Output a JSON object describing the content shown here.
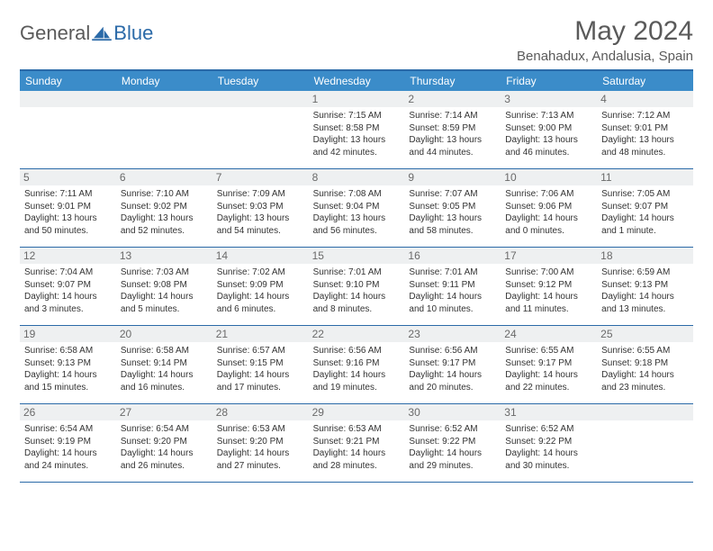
{
  "logo": {
    "text1": "General",
    "text2": "Blue"
  },
  "title": {
    "month": "May 2024",
    "location": "Benahadux, Andalusia, Spain"
  },
  "colors": {
    "header_bg": "#3b8cc9",
    "border": "#2b6aa8",
    "daynum_bg": "#eef0f1",
    "text_gray": "#5a5a5a",
    "text_dark": "#333333",
    "logo_blue": "#2b6aa8"
  },
  "weekdays": [
    "Sunday",
    "Monday",
    "Tuesday",
    "Wednesday",
    "Thursday",
    "Friday",
    "Saturday"
  ],
  "weeks": [
    [
      {
        "n": "",
        "empty": true
      },
      {
        "n": "",
        "empty": true
      },
      {
        "n": "",
        "empty": true
      },
      {
        "n": "1",
        "sr": "7:15 AM",
        "ss": "8:58 PM",
        "dl": "13 hours and 42 minutes."
      },
      {
        "n": "2",
        "sr": "7:14 AM",
        "ss": "8:59 PM",
        "dl": "13 hours and 44 minutes."
      },
      {
        "n": "3",
        "sr": "7:13 AM",
        "ss": "9:00 PM",
        "dl": "13 hours and 46 minutes."
      },
      {
        "n": "4",
        "sr": "7:12 AM",
        "ss": "9:01 PM",
        "dl": "13 hours and 48 minutes."
      }
    ],
    [
      {
        "n": "5",
        "sr": "7:11 AM",
        "ss": "9:01 PM",
        "dl": "13 hours and 50 minutes."
      },
      {
        "n": "6",
        "sr": "7:10 AM",
        "ss": "9:02 PM",
        "dl": "13 hours and 52 minutes."
      },
      {
        "n": "7",
        "sr": "7:09 AM",
        "ss": "9:03 PM",
        "dl": "13 hours and 54 minutes."
      },
      {
        "n": "8",
        "sr": "7:08 AM",
        "ss": "9:04 PM",
        "dl": "13 hours and 56 minutes."
      },
      {
        "n": "9",
        "sr": "7:07 AM",
        "ss": "9:05 PM",
        "dl": "13 hours and 58 minutes."
      },
      {
        "n": "10",
        "sr": "7:06 AM",
        "ss": "9:06 PM",
        "dl": "14 hours and 0 minutes."
      },
      {
        "n": "11",
        "sr": "7:05 AM",
        "ss": "9:07 PM",
        "dl": "14 hours and 1 minute."
      }
    ],
    [
      {
        "n": "12",
        "sr": "7:04 AM",
        "ss": "9:07 PM",
        "dl": "14 hours and 3 minutes."
      },
      {
        "n": "13",
        "sr": "7:03 AM",
        "ss": "9:08 PM",
        "dl": "14 hours and 5 minutes."
      },
      {
        "n": "14",
        "sr": "7:02 AM",
        "ss": "9:09 PM",
        "dl": "14 hours and 6 minutes."
      },
      {
        "n": "15",
        "sr": "7:01 AM",
        "ss": "9:10 PM",
        "dl": "14 hours and 8 minutes."
      },
      {
        "n": "16",
        "sr": "7:01 AM",
        "ss": "9:11 PM",
        "dl": "14 hours and 10 minutes."
      },
      {
        "n": "17",
        "sr": "7:00 AM",
        "ss": "9:12 PM",
        "dl": "14 hours and 11 minutes."
      },
      {
        "n": "18",
        "sr": "6:59 AM",
        "ss": "9:13 PM",
        "dl": "14 hours and 13 minutes."
      }
    ],
    [
      {
        "n": "19",
        "sr": "6:58 AM",
        "ss": "9:13 PM",
        "dl": "14 hours and 15 minutes."
      },
      {
        "n": "20",
        "sr": "6:58 AM",
        "ss": "9:14 PM",
        "dl": "14 hours and 16 minutes."
      },
      {
        "n": "21",
        "sr": "6:57 AM",
        "ss": "9:15 PM",
        "dl": "14 hours and 17 minutes."
      },
      {
        "n": "22",
        "sr": "6:56 AM",
        "ss": "9:16 PM",
        "dl": "14 hours and 19 minutes."
      },
      {
        "n": "23",
        "sr": "6:56 AM",
        "ss": "9:17 PM",
        "dl": "14 hours and 20 minutes."
      },
      {
        "n": "24",
        "sr": "6:55 AM",
        "ss": "9:17 PM",
        "dl": "14 hours and 22 minutes."
      },
      {
        "n": "25",
        "sr": "6:55 AM",
        "ss": "9:18 PM",
        "dl": "14 hours and 23 minutes."
      }
    ],
    [
      {
        "n": "26",
        "sr": "6:54 AM",
        "ss": "9:19 PM",
        "dl": "14 hours and 24 minutes."
      },
      {
        "n": "27",
        "sr": "6:54 AM",
        "ss": "9:20 PM",
        "dl": "14 hours and 26 minutes."
      },
      {
        "n": "28",
        "sr": "6:53 AM",
        "ss": "9:20 PM",
        "dl": "14 hours and 27 minutes."
      },
      {
        "n": "29",
        "sr": "6:53 AM",
        "ss": "9:21 PM",
        "dl": "14 hours and 28 minutes."
      },
      {
        "n": "30",
        "sr": "6:52 AM",
        "ss": "9:22 PM",
        "dl": "14 hours and 29 minutes."
      },
      {
        "n": "31",
        "sr": "6:52 AM",
        "ss": "9:22 PM",
        "dl": "14 hours and 30 minutes."
      },
      {
        "n": "",
        "empty": true
      }
    ]
  ],
  "labels": {
    "sunrise": "Sunrise:",
    "sunset": "Sunset:",
    "daylight": "Daylight:"
  }
}
